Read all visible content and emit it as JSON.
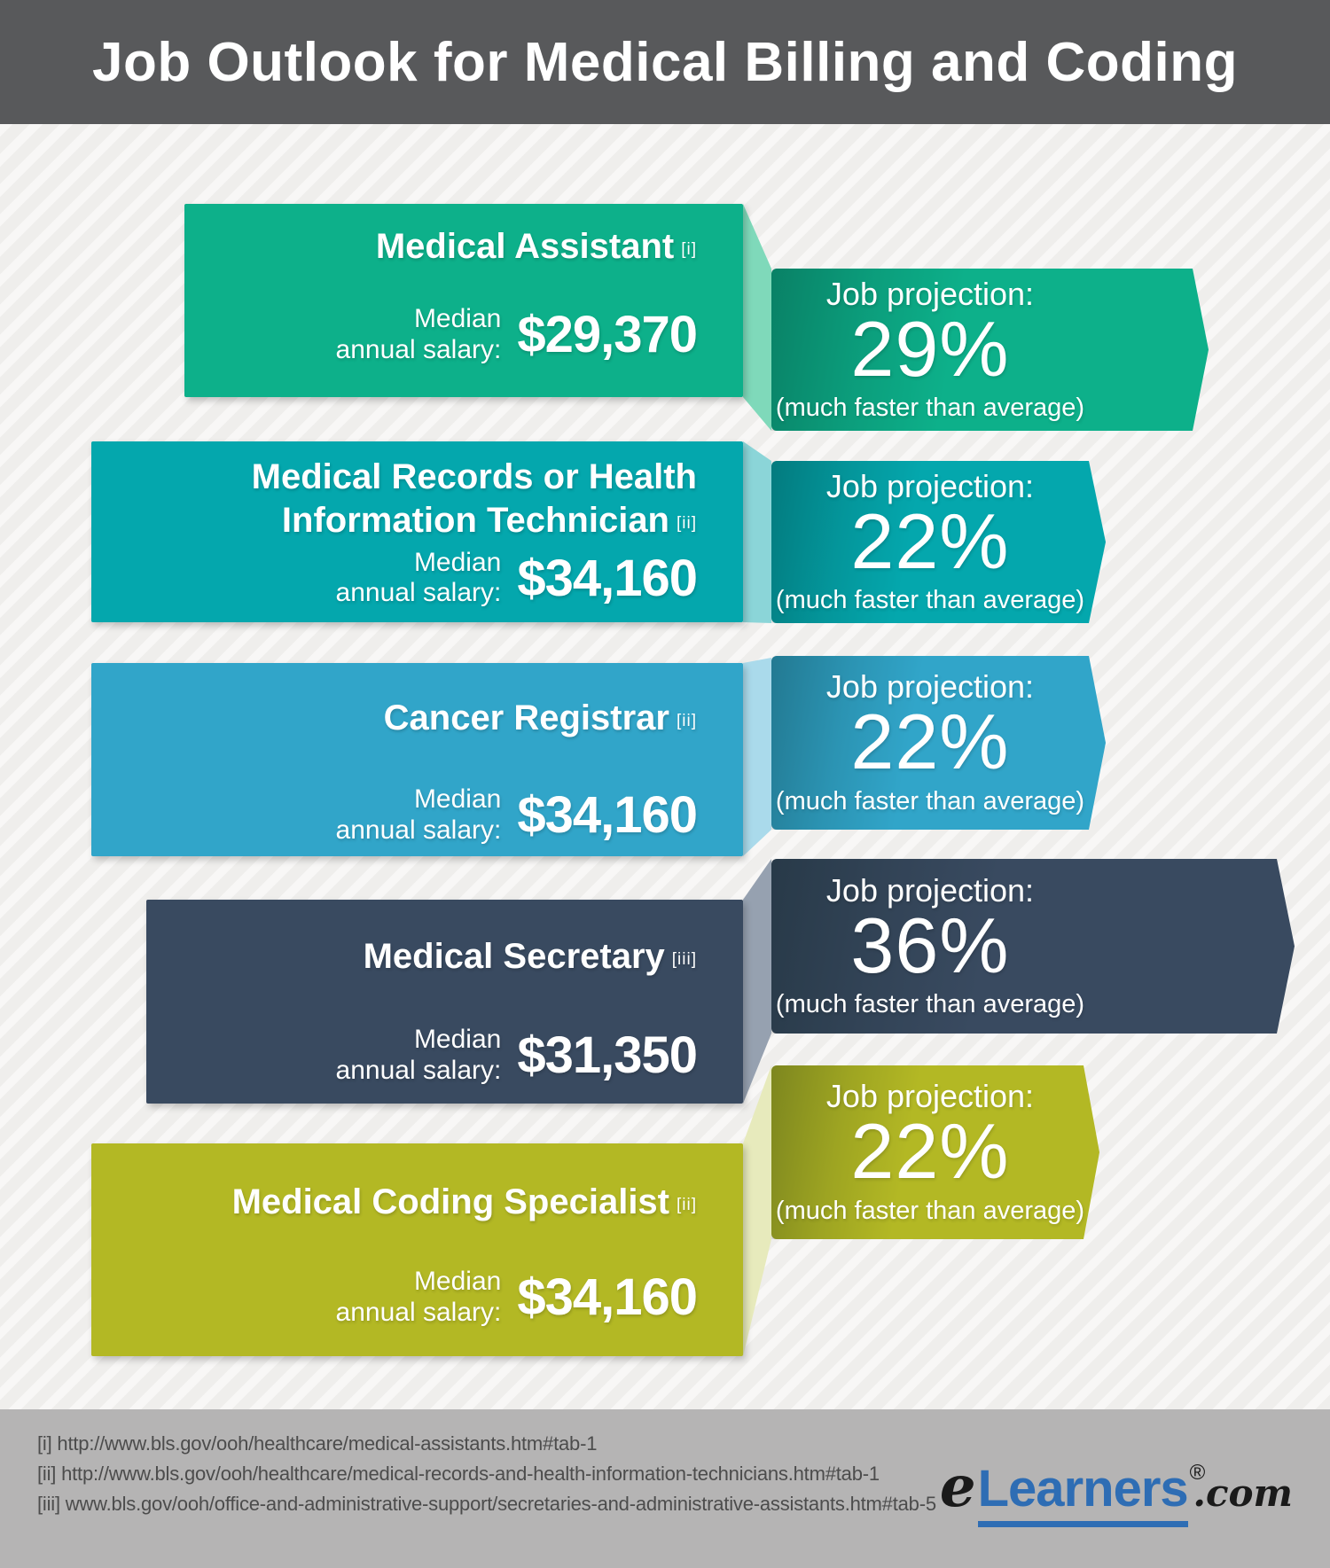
{
  "header": {
    "title": "Job Outlook for Medical Billing and Coding"
  },
  "labels": {
    "salary_top": "Median",
    "salary_bottom": "annual salary:",
    "projection": "Job projection:",
    "note": "(much faster than average)"
  },
  "jobs": [
    {
      "title": "Medical Assistant",
      "ref": "[i]",
      "salary": "$29,370",
      "projection": "29%",
      "colors": {
        "card": "#0db08a",
        "fold": "#7fd9ba"
      }
    },
    {
      "title": "Medical Records or Health Information Technician",
      "ref": "[ii]",
      "salary": "$34,160",
      "projection": "22%",
      "colors": {
        "card": "#04a7ad",
        "fold": "#8bd5d8"
      }
    },
    {
      "title": "Cancer Registrar",
      "ref": "[ii]",
      "salary": "$34,160",
      "projection": "22%",
      "colors": {
        "card": "#31a5c9",
        "fold": "#aadaeb"
      }
    },
    {
      "title": "Medical Secretary",
      "ref": "[iii]",
      "salary": "$31,350",
      "projection": "36%",
      "colors": {
        "card": "#394a60",
        "fold": "#96a1b0"
      }
    },
    {
      "title": "Medical Coding Specialist",
      "ref": "[ii]",
      "salary": "$34,160",
      "projection": "22%",
      "colors": {
        "card": "#b3b824",
        "fold": "#e7eabc"
      }
    }
  ],
  "footer": {
    "citations": [
      "[i] http://www.bls.gov/ooh/healthcare/medical-assistants.htm#tab-1",
      "[ii] http://www.bls.gov/ooh/healthcare/medical-records-and-health-information-technicians.htm#tab-1",
      "[iii] www.bls.gov/ooh/office-and-administrative-support/secretaries-and-administrative-assistants.htm#tab-5"
    ],
    "logo": {
      "prefix": "e",
      "name": "Learners",
      "registered": "®",
      "suffix": ".com"
    }
  },
  "colors": {
    "header_bg": "#58595b",
    "footer_bg": "#b5b4b4",
    "background": "#efeeec",
    "citation_text": "#4c4c4c",
    "logo_blue": "#2e6db4",
    "logo_black": "#1a1a1a",
    "text": "#ffffff"
  }
}
